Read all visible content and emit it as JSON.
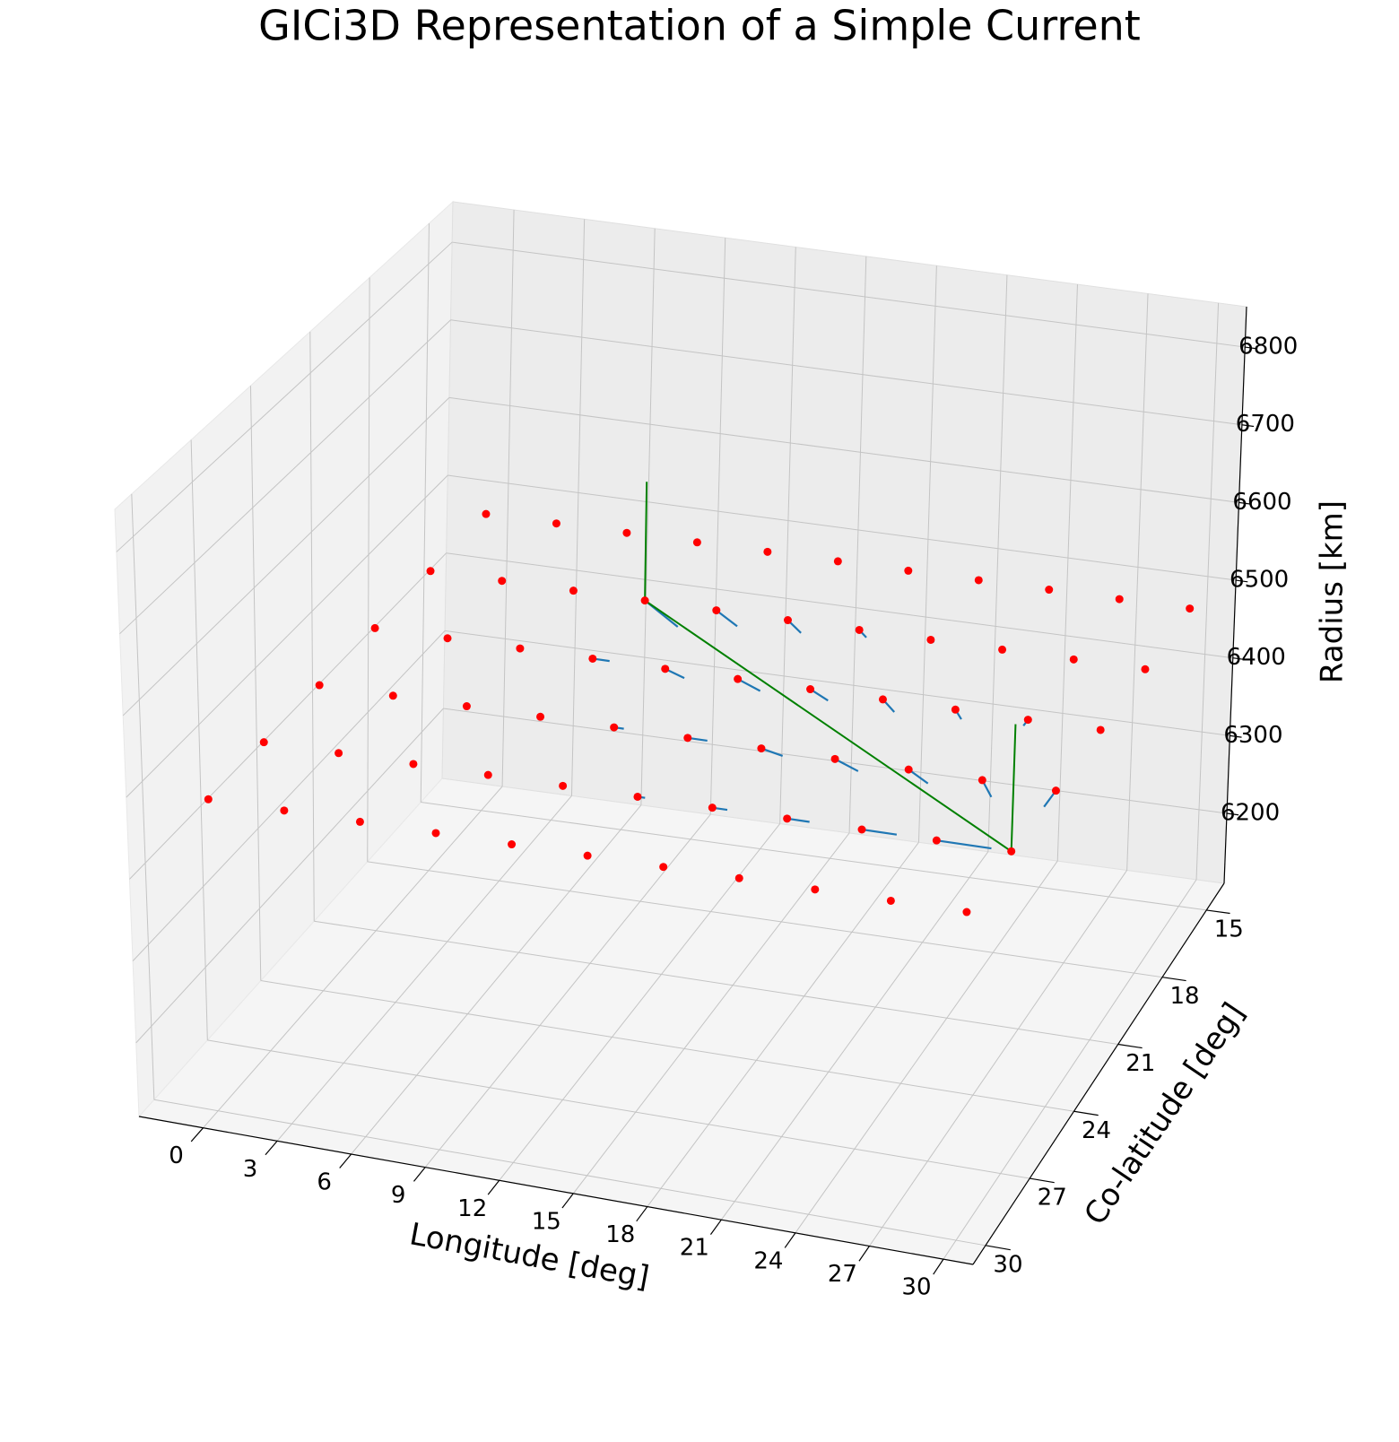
{
  "chart_data": {
    "type": "scatter3d",
    "title": "GICi3D Representation of a Simple Current",
    "xlabel": "Longitude [deg]",
    "ylabel": "Co-latitude [deg]",
    "zlabel": "Radius [km]",
    "xlim": [
      -2.6,
      31.2
    ],
    "ylim": [
      13.8,
      30.85
    ],
    "zlim": [
      6110,
      6852
    ],
    "xticks": [
      0,
      3,
      6,
      9,
      12,
      15,
      18,
      21,
      24,
      27,
      30
    ],
    "yticks": [
      15,
      18,
      21,
      24,
      27,
      30
    ],
    "zticks": [
      6200,
      6300,
      6400,
      6500,
      6600,
      6700,
      6800
    ],
    "grid": true,
    "series": [
      {
        "type": "scatter",
        "color": "#ff0000",
        "x": [
          0,
          3,
          6,
          9,
          12,
          15,
          18,
          21,
          24,
          27,
          30,
          0,
          3,
          6,
          9,
          12,
          15,
          18,
          21,
          24,
          27,
          30,
          0,
          3,
          6,
          9,
          12,
          15,
          18,
          21,
          24,
          27,
          30,
          0,
          3,
          6,
          9,
          12,
          15,
          18,
          21,
          24,
          27,
          30,
          0,
          3,
          6,
          9,
          12,
          15,
          18,
          21,
          24,
          27,
          30,
          0,
          3,
          6,
          9,
          12,
          15,
          18,
          21,
          24,
          27,
          30
        ],
        "y": [
          15,
          15,
          15,
          15,
          15,
          15,
          15,
          15,
          15,
          15,
          15,
          18,
          18,
          18,
          18,
          18,
          18,
          18,
          18,
          18,
          18,
          18,
          21,
          21,
          21,
          21,
          21,
          21,
          21,
          21,
          21,
          21,
          21,
          24,
          24,
          24,
          24,
          24,
          24,
          24,
          24,
          24,
          24,
          24,
          27,
          27,
          27,
          27,
          27,
          27,
          27,
          27,
          27,
          27,
          27,
          30,
          30,
          30,
          30,
          30,
          30,
          30,
          30,
          30,
          30,
          30
        ],
        "z": [
          6490,
          6490,
          6490,
          6490,
          6490,
          6490,
          6490,
          6490,
          6490,
          6490,
          6490,
          6490,
          6490,
          6490,
          6490,
          6490,
          6490,
          6490,
          6490,
          6490,
          6490,
          6490,
          6490,
          6490,
          6490,
          6490,
          6490,
          6490,
          6490,
          6490,
          6490,
          6490,
          6490,
          6490,
          6490,
          6490,
          6490,
          6490,
          6490,
          6490,
          6490,
          6490,
          6490,
          6490,
          6490,
          6490,
          6490,
          6490,
          6490,
          6490,
          6490,
          6490,
          6490,
          6490,
          6490,
          6490,
          6490,
          6490,
          6490,
          6490,
          6490,
          6490,
          6490,
          6490,
          6490,
          6490
        ]
      },
      {
        "type": "quiver",
        "color": "#1f77b4",
        "x": [
          9,
          12,
          15,
          18,
          21,
          24,
          9,
          12,
          15,
          18,
          21,
          24,
          27,
          30,
          12,
          15,
          18,
          21,
          24,
          27,
          30,
          15,
          18,
          21,
          24,
          27
        ],
        "y": [
          18,
          18,
          18,
          18,
          18,
          18,
          21,
          21,
          21,
          21,
          21,
          21,
          21,
          21,
          24,
          24,
          24,
          24,
          24,
          24,
          24,
          27,
          27,
          27,
          27,
          27
        ],
        "z": [
          6490,
          6490,
          6490,
          6490,
          6490,
          6490,
          6490,
          6490,
          6490,
          6490,
          6490,
          6490,
          6490,
          6490,
          6490,
          6490,
          6490,
          6490,
          6490,
          6490,
          6490,
          6490,
          6490,
          6490,
          6490,
          6490
        ],
        "u": [
          2.1,
          1.3,
          0.9,
          0.5,
          0.2,
          0.1,
          0.7,
          1.0,
          1.2,
          1.0,
          0.8,
          0.5,
          0,
          0.1,
          0.4,
          0.8,
          1.0,
          1.2,
          1.1,
          0.8,
          0,
          0.3,
          0.6,
          0.9,
          1.4,
          2.2
        ],
        "v": [
          1.0,
          0.6,
          0.5,
          0.3,
          0.1,
          0,
          0,
          0.3,
          0.4,
          0.4,
          0.5,
          0.4,
          0.3,
          0.1,
          0,
          0,
          0.2,
          0.4,
          0.5,
          0.7,
          0.8,
          0,
          0,
          0,
          0,
          0
        ]
      },
      {
        "type": "line",
        "color": "#008000",
        "x": [
          9,
          9,
          30,
          30
        ],
        "y": [
          18,
          18,
          27,
          27
        ],
        "z": [
          6640,
          6490,
          6490,
          6640
        ]
      }
    ]
  }
}
